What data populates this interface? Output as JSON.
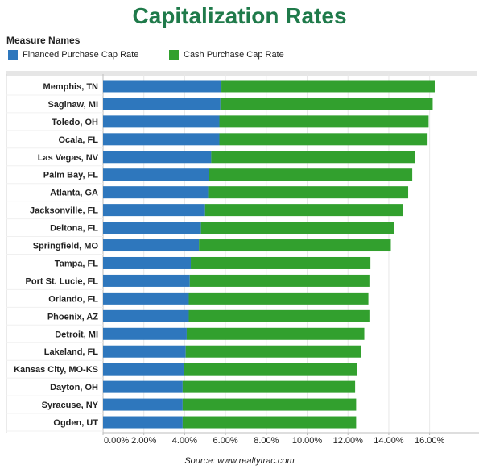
{
  "colors": {
    "title": "#1f7a4a",
    "financed": "#2e77bd",
    "cash": "#32a02e"
  },
  "title": "Capitalization Rates",
  "legend": {
    "title": "Measure Names",
    "items": [
      {
        "label": "Financed Purchase Cap Rate",
        "color": "#2e77bd"
      },
      {
        "label": "Cash Purchase Cap Rate",
        "color": "#32a02e"
      }
    ]
  },
  "source": "Source: www.realtytrac.com",
  "chart_data": {
    "type": "bar",
    "orientation": "horizontal",
    "stacked": true,
    "title": "Capitalization Rates",
    "categories": [
      "Memphis, TN",
      "Saginaw, MI",
      "Toledo, OH",
      "Ocala, FL",
      "Las Vegas, NV",
      "Palm Bay, FL",
      "Atlanta, GA",
      "Jacksonville, FL",
      "Deltona, FL",
      "Springfield, MO",
      "Tampa, FL",
      "Port St. Lucie, FL",
      "Orlando, FL",
      "Phoenix, AZ",
      "Detroit, MI",
      "Lakeland, FL",
      "Kansas City, MO-KS",
      "Dayton, OH",
      "Syracuse, NY",
      "Ogden, UT"
    ],
    "series": [
      {
        "name": "Financed Purchase Cap Rate",
        "values": [
          5.8,
          5.75,
          5.7,
          5.7,
          5.3,
          5.2,
          5.15,
          5.0,
          4.8,
          4.7,
          4.3,
          4.25,
          4.2,
          4.2,
          4.1,
          4.05,
          3.95,
          3.9,
          3.9,
          3.9
        ]
      },
      {
        "name": "Cash Purchase Cap Rate",
        "values": [
          10.45,
          10.4,
          10.25,
          10.2,
          10.0,
          9.95,
          9.8,
          9.7,
          9.45,
          9.4,
          8.8,
          8.8,
          8.8,
          8.85,
          8.7,
          8.6,
          8.5,
          8.45,
          8.5,
          8.5
        ]
      }
    ],
    "x_ticks": [
      "0.00%",
      "2.00%",
      "4.00%",
      "6.00%",
      "8.00%",
      "10.00%",
      "12.00%",
      "14.00%",
      "16.00%"
    ],
    "xlim": [
      0,
      17
    ],
    "x_unit": "%",
    "grid": true
  }
}
